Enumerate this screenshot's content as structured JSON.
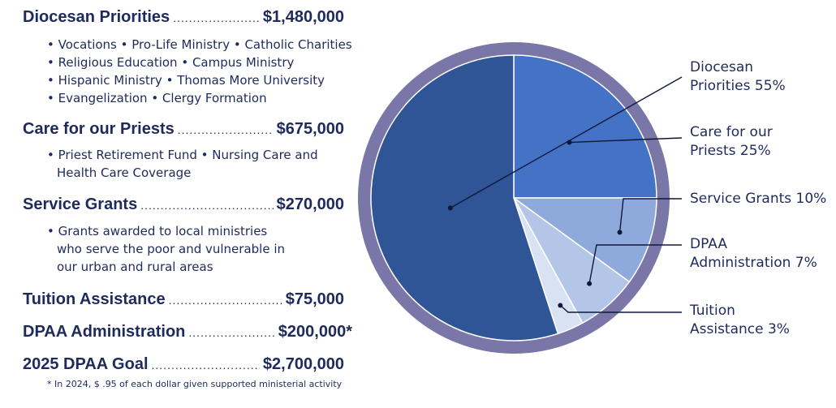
{
  "left_list": {
    "items": [
      {
        "label": "Diocesan Priorities",
        "amount": "$1,480,000",
        "bullets": [
          "• Vocations • Pro-Life Ministry • Catholic Charities",
          "• Religious Education • Campus Ministry",
          "• Hispanic Ministry • Thomas More University",
          "• Evangelization • Clergy Formation"
        ]
      },
      {
        "label": "Care for our Priests",
        "amount": "$675,000",
        "bullets": [
          "• Priest Retirement Fund • Nursing Care and",
          "Health Care Coverage"
        ]
      },
      {
        "label": "Service Grants",
        "amount": "$270,000",
        "bullets": [
          "• Grants awarded to local ministries",
          "who serve the poor and vulnerable in",
          "our urban and rural areas"
        ]
      },
      {
        "label": "Tuition Assistance",
        "amount": "$75,000",
        "bullets": []
      },
      {
        "label": "DPAA Administration",
        "amount": "$200,000*",
        "bullets": []
      },
      {
        "label": "2025 DPAA Goal",
        "amount": "$2,700,000",
        "bullets": []
      }
    ],
    "footnote": "* In 2024, $ .95 of each dollar given supported ministerial activity"
  },
  "colors": {
    "ring": "#7b76a8",
    "slice_diocesan": "#2f5597",
    "slice_priests": "#4472c4",
    "slice_grants": "#8ea9db",
    "slice_admin": "#b4c6e7",
    "slice_tuition": "#d9e2f3",
    "text": "#1f2a5c"
  },
  "chart_data": {
    "type": "pie",
    "slices": [
      {
        "legend_lines": [
          "Diocesan",
          "Priorities 55%"
        ],
        "value": 55
      },
      {
        "legend_lines": [
          "Care for our",
          "Priests 25%"
        ],
        "value": 25
      },
      {
        "legend_lines": [
          "Service Grants 10%"
        ],
        "value": 10
      },
      {
        "legend_lines": [
          "DPAA",
          "Administration 7%"
        ],
        "value": 7
      },
      {
        "legend_lines": [
          "Tuition",
          "Assistance 3%"
        ],
        "value": 3
      }
    ],
    "legend_placement": "right"
  }
}
